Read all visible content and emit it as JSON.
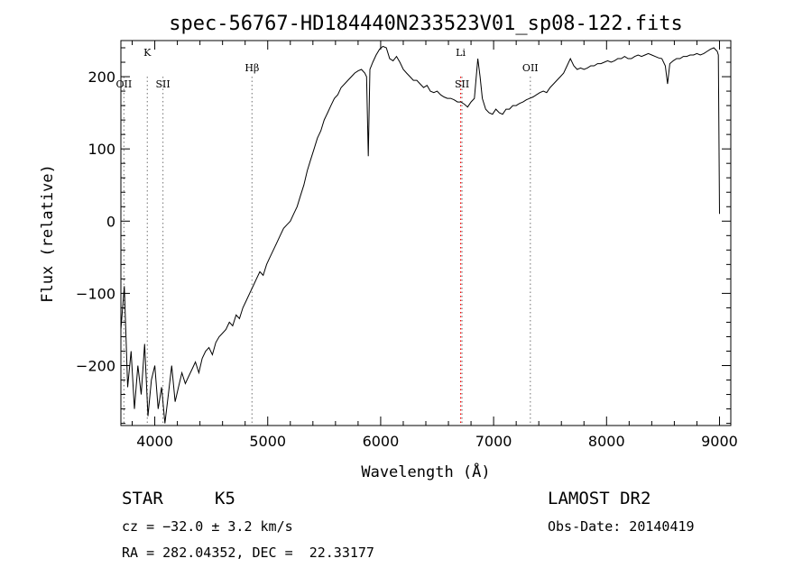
{
  "chart_data": {
    "type": "line",
    "title": "spec-56767-HD184440N233523V01_sp08-122.fits",
    "xlabel": "Wavelength (Å)",
    "ylabel": "Flux (relative)",
    "xlim": [
      3700,
      9100
    ],
    "ylim": [
      -283,
      250
    ],
    "xticks": [
      4000,
      5000,
      6000,
      7000,
      8000,
      9000
    ],
    "yticks": [
      -200,
      -100,
      0,
      100,
      200
    ],
    "grid": false,
    "series": [
      {
        "color": "#000000",
        "x": [
          3700,
          3730,
          3760,
          3790,
          3820,
          3850,
          3880,
          3910,
          3940,
          3970,
          4000,
          4030,
          4060,
          4090,
          4120,
          4150,
          4180,
          4210,
          4240,
          4270,
          4300,
          4330,
          4360,
          4390,
          4420,
          4450,
          4480,
          4510,
          4540,
          4570,
          4600,
          4630,
          4660,
          4690,
          4720,
          4750,
          4780,
          4810,
          4840,
          4870,
          4900,
          4930,
          4960,
          4990,
          5020,
          5050,
          5080,
          5110,
          5140,
          5170,
          5200,
          5230,
          5260,
          5290,
          5320,
          5350,
          5380,
          5410,
          5440,
          5470,
          5500,
          5530,
          5560,
          5590,
          5620,
          5650,
          5680,
          5710,
          5740,
          5770,
          5800,
          5830,
          5860,
          5875,
          5890,
          5905,
          5930,
          5960,
          5990,
          6020,
          6050,
          6080,
          6110,
          6140,
          6170,
          6200,
          6230,
          6260,
          6290,
          6320,
          6350,
          6380,
          6410,
          6440,
          6470,
          6500,
          6530,
          6560,
          6590,
          6620,
          6650,
          6680,
          6710,
          6740,
          6770,
          6800,
          6830,
          6860,
          6880,
          6900,
          6930,
          6960,
          6990,
          7020,
          7050,
          7080,
          7110,
          7140,
          7170,
          7200,
          7230,
          7260,
          7290,
          7320,
          7350,
          7380,
          7410,
          7440,
          7470,
          7500,
          7530,
          7560,
          7590,
          7620,
          7650,
          7680,
          7710,
          7740,
          7770,
          7800,
          7830,
          7860,
          7890,
          7920,
          7950,
          7980,
          8010,
          8040,
          8070,
          8100,
          8130,
          8160,
          8190,
          8220,
          8250,
          8280,
          8310,
          8340,
          8370,
          8400,
          8430,
          8460,
          8490,
          8520,
          8540,
          8560,
          8590,
          8620,
          8650,
          8680,
          8710,
          8740,
          8770,
          8800,
          8830,
          8860,
          8890,
          8920,
          8950,
          8980,
          8990,
          9000
        ],
        "y": [
          -150,
          -90,
          -230,
          -180,
          -260,
          -200,
          -240,
          -170,
          -270,
          -220,
          -200,
          -260,
          -230,
          -280,
          -240,
          -200,
          -250,
          -230,
          -210,
          -225,
          -215,
          -205,
          -195,
          -210,
          -190,
          -180,
          -175,
          -185,
          -168,
          -160,
          -155,
          -150,
          -140,
          -145,
          -130,
          -135,
          -120,
          -110,
          -100,
          -90,
          -80,
          -70,
          -75,
          -60,
          -50,
          -40,
          -30,
          -20,
          -10,
          -5,
          0,
          10,
          20,
          35,
          50,
          70,
          85,
          100,
          115,
          125,
          140,
          150,
          160,
          170,
          175,
          185,
          190,
          195,
          200,
          205,
          208,
          210,
          205,
          200,
          90,
          210,
          220,
          230,
          238,
          242,
          240,
          225,
          222,
          228,
          220,
          210,
          205,
          200,
          195,
          195,
          190,
          185,
          188,
          180,
          178,
          180,
          175,
          172,
          170,
          170,
          168,
          165,
          165,
          162,
          158,
          165,
          170,
          225,
          200,
          170,
          155,
          150,
          148,
          155,
          150,
          148,
          155,
          155,
          160,
          160,
          163,
          165,
          168,
          170,
          172,
          175,
          178,
          180,
          178,
          185,
          190,
          195,
          200,
          205,
          215,
          225,
          215,
          210,
          212,
          210,
          212,
          215,
          215,
          218,
          218,
          220,
          222,
          220,
          222,
          225,
          225,
          228,
          225,
          225,
          228,
          230,
          228,
          230,
          232,
          230,
          228,
          226,
          225,
          215,
          190,
          218,
          222,
          225,
          225,
          228,
          228,
          230,
          230,
          232,
          230,
          232,
          235,
          238,
          240,
          235,
          230,
          10
        ]
      }
    ],
    "line_markers": [
      {
        "label": "K",
        "wavelength": 3934,
        "row": "top",
        "color": "#888888"
      },
      {
        "label": "OII",
        "wavelength": 3727,
        "row": "bottom",
        "color": "#888888"
      },
      {
        "label": "SII",
        "wavelength": 4072,
        "row": "bottom",
        "color": "#888888"
      },
      {
        "label": "Hβ",
        "wavelength": 4861,
        "row": "middle",
        "color": "#888888"
      },
      {
        "label": "Li",
        "wavelength": 6708,
        "row": "top",
        "color": "#ff0000"
      },
      {
        "label": "SII",
        "wavelength": 6720,
        "row": "bottom",
        "color": "#888888"
      },
      {
        "label": "OII",
        "wavelength": 7325,
        "row": "middle",
        "color": "#888888"
      }
    ]
  },
  "footer": {
    "class_label": "STAR",
    "subclass": "K5",
    "cz": "cz = −32.0 ± 3.2 km/s",
    "coords": "RA = 282.04352, DEC =  22.33177",
    "survey": "LAMOST DR2",
    "obs_date": "Obs-Date: 20140419"
  }
}
